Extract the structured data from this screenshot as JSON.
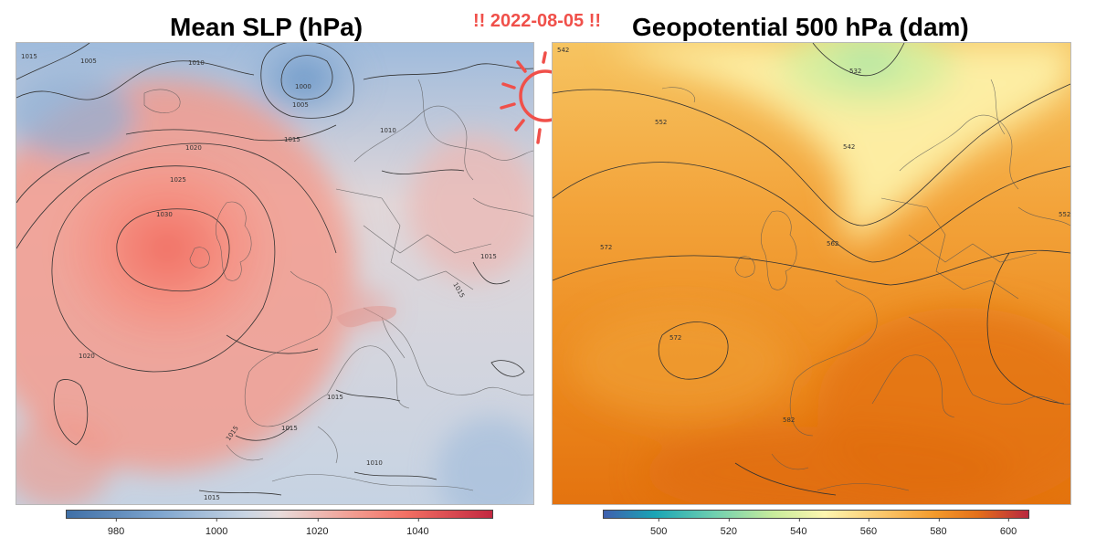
{
  "header": {
    "left_title": "Mean SLP (hPa)",
    "right_title": "Geopotential 500 hPa (dam)",
    "date_banner": "!! 2022-08-05 !!"
  },
  "slp_panel": {
    "contour_labels": [
      "1015",
      "1005",
      "1010",
      "1000",
      "1005",
      "1015",
      "1010",
      "1020",
      "1025",
      "1030",
      "1015",
      "1015",
      "1020",
      "1015",
      "1015",
      "1015",
      "1010",
      "1015"
    ],
    "colorbar": {
      "ticks": [
        "980",
        "1000",
        "1020",
        "1040"
      ],
      "min": 970,
      "max": 1055,
      "values": [
        980,
        1000,
        1020,
        1040
      ]
    }
  },
  "z500_panel": {
    "contour_labels": [
      "542",
      "532",
      "552",
      "542",
      "572",
      "562",
      "572",
      "552",
      "582"
    ],
    "colorbar": {
      "ticks": [
        "500",
        "520",
        "540",
        "560",
        "580",
        "600"
      ],
      "min": 484,
      "max": 606,
      "values": [
        500,
        520,
        540,
        560,
        580,
        600
      ]
    }
  },
  "colors": {
    "banner": "#f0504a",
    "high": "#f26f63",
    "low": "#5f8fc4"
  }
}
